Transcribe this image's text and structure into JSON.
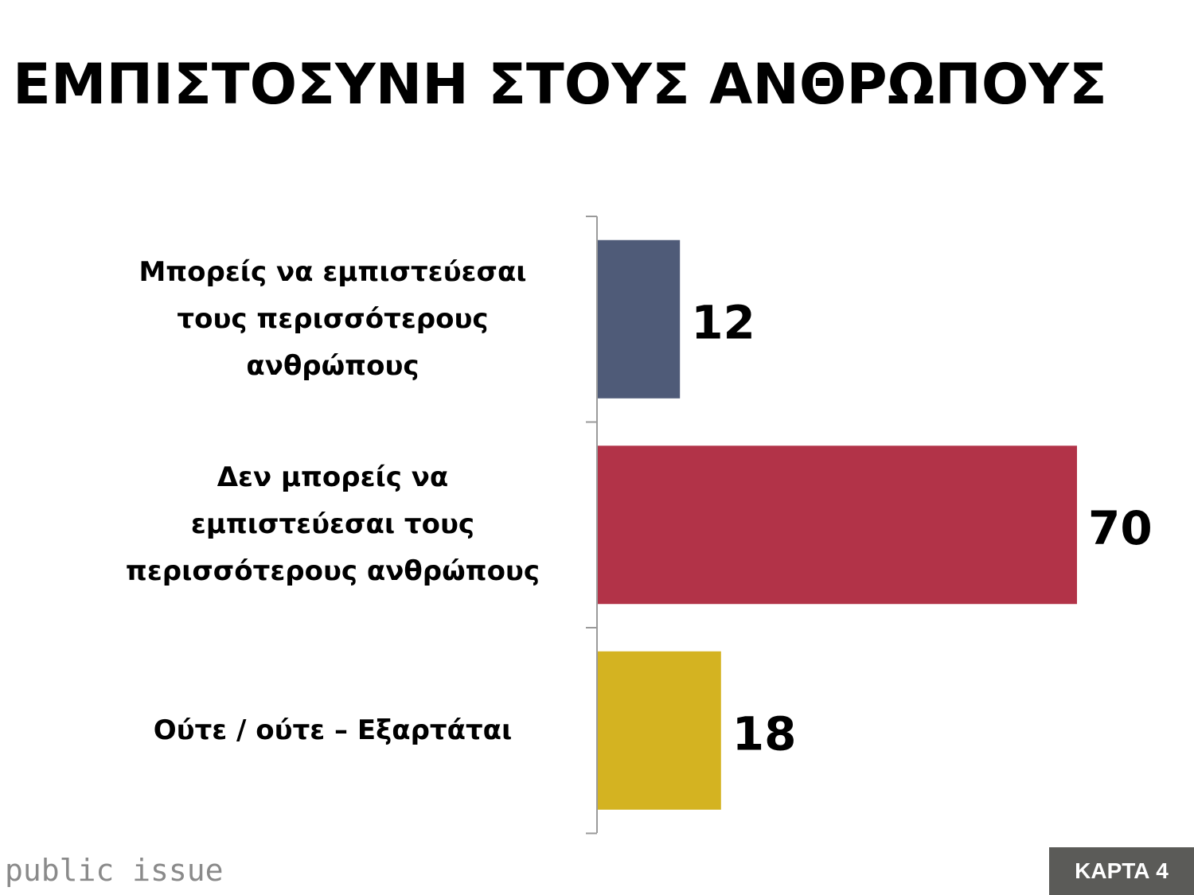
{
  "title": "ΕΜΠΙΣΤΟΣΥΝΗ ΣΤΟΥΣ ΑΝΘΡΩΠΟΥΣ",
  "footer": {
    "brand": "public issue",
    "card_label": "ΚΑΡΤΑ 4"
  },
  "colors": {
    "bar_1": "#4f5b78",
    "bar_2": "#b23348",
    "bar_3": "#d4b321",
    "badge_bg": "#5b5b58",
    "brand_text": "#8a8a8a"
  },
  "chart_data": {
    "type": "bar",
    "orientation": "horizontal",
    "title": "",
    "xlabel": "",
    "ylabel": "",
    "xlim": [
      0,
      70
    ],
    "grid": false,
    "categories": [
      "Μπορείς να εμπιστεύεσαι\nτους περισσότερους\nανθρώπους",
      "Δεν μπορείς να\nεμπιστεύεσαι τους\nπερισσότερους ανθρώπους",
      "Ούτε / ούτε – Εξαρτάται"
    ],
    "values": [
      12,
      70,
      18
    ],
    "data_labels": [
      "12",
      "70",
      "18"
    ],
    "bar_colors": [
      "#4f5b78",
      "#b23348",
      "#d4b321"
    ]
  }
}
